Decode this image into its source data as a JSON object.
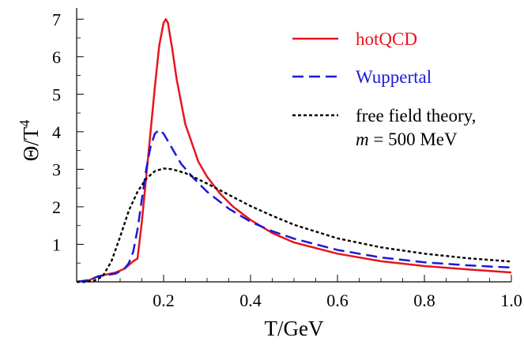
{
  "chart_data": {
    "type": "line",
    "title": "",
    "xlabel": "T/GeV",
    "ylabel_main": "Θ/T",
    "ylabel_exp": "4",
    "xlim": [
      0,
      1.0
    ],
    "ylim": [
      0,
      7.3
    ],
    "xticks": [
      0.2,
      0.4,
      0.6,
      0.8,
      1.0
    ],
    "xtick_labels": [
      "0.2",
      "0.4",
      "0.6",
      "0.8",
      "1.0"
    ],
    "yticks": [
      1,
      2,
      3,
      4,
      5,
      6,
      7
    ],
    "ytick_labels": [
      "1",
      "2",
      "3",
      "4",
      "5",
      "6",
      "7"
    ],
    "grid": false,
    "legend_position": "top-right",
    "series": [
      {
        "name": "hotQCD",
        "color": "#e8141b",
        "style": "solid",
        "x": [
          0.0,
          0.03,
          0.05,
          0.07,
          0.09,
          0.11,
          0.13,
          0.14,
          0.15,
          0.16,
          0.17,
          0.18,
          0.19,
          0.2,
          0.205,
          0.21,
          0.22,
          0.23,
          0.25,
          0.28,
          0.3,
          0.33,
          0.36,
          0.4,
          0.45,
          0.5,
          0.6,
          0.7,
          0.8,
          0.9,
          1.0
        ],
        "y": [
          0.0,
          0.05,
          0.15,
          0.2,
          0.25,
          0.35,
          0.55,
          0.62,
          1.6,
          2.8,
          4.0,
          5.2,
          6.3,
          6.9,
          7.0,
          6.9,
          6.2,
          5.4,
          4.2,
          3.2,
          2.8,
          2.35,
          2.0,
          1.65,
          1.3,
          1.05,
          0.75,
          0.55,
          0.42,
          0.33,
          0.25
        ]
      },
      {
        "name": "Wuppertal",
        "color": "#1a1adb",
        "style": "dashed",
        "x": [
          0.0,
          0.03,
          0.05,
          0.07,
          0.09,
          0.11,
          0.12,
          0.13,
          0.14,
          0.15,
          0.16,
          0.17,
          0.18,
          0.19,
          0.2,
          0.22,
          0.24,
          0.27,
          0.3,
          0.35,
          0.4,
          0.45,
          0.5,
          0.6,
          0.7,
          0.8,
          0.9,
          1.0
        ],
        "y": [
          0.0,
          0.05,
          0.15,
          0.18,
          0.22,
          0.35,
          0.5,
          0.8,
          1.4,
          2.2,
          3.0,
          3.6,
          3.95,
          4.05,
          3.95,
          3.55,
          3.15,
          2.75,
          2.4,
          1.95,
          1.6,
          1.35,
          1.15,
          0.85,
          0.65,
          0.52,
          0.44,
          0.38
        ]
      },
      {
        "name": "free field theory,",
        "name_line2": "m = 500 MeV",
        "name_line2_italic": "m",
        "name_line2_rest": " = 500 MeV",
        "color": "#000000",
        "style": "dotted",
        "x": [
          0.0,
          0.02,
          0.04,
          0.06,
          0.08,
          0.1,
          0.12,
          0.14,
          0.16,
          0.18,
          0.2,
          0.22,
          0.25,
          0.3,
          0.35,
          0.4,
          0.45,
          0.5,
          0.6,
          0.7,
          0.8,
          0.9,
          1.0
        ],
        "y": [
          0.0,
          0.0,
          0.03,
          0.15,
          0.55,
          1.2,
          1.9,
          2.4,
          2.75,
          2.95,
          3.02,
          3.0,
          2.9,
          2.62,
          2.32,
          2.02,
          1.76,
          1.52,
          1.16,
          0.92,
          0.75,
          0.63,
          0.54
        ]
      }
    ]
  }
}
